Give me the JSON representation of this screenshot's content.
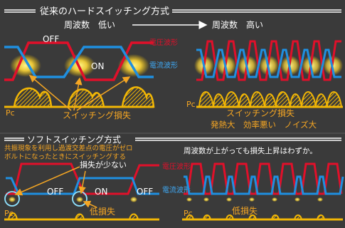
{
  "top_section": {
    "title": "従来のハードスイッチング方式",
    "freq_low": "周波数　低い",
    "freq_high": "周波数　高い",
    "off_label": "OFF",
    "on_label": "ON",
    "voltage_wave": "電圧波形",
    "current_wave": "電流波形",
    "pc_left": "Pc",
    "loss_left": "スイッチング損失",
    "pc_right": "Pc",
    "loss_right": "スイッチング損失",
    "problems": "発熱大　効率悪い　ノイズ大"
  },
  "bottom_section": {
    "title": "ソフトスイッチング方式",
    "desc_line1": "共振現象を利用し過渡交差点の電圧がゼロ",
    "desc_line2": "ボルトになったときにスイッチングする",
    "small_loss": "損失が少ない",
    "voltage_wave": "電圧波形",
    "current_wave": "電流波形",
    "off_label_1": "OFF",
    "on_label": "ON",
    "off_label_2": "OFF",
    "pc_left": "Pc",
    "low_loss_left": "低損失",
    "freq_note": "周波数が上がっても損失上昇はわずか。",
    "pc_right": "Pc",
    "low_loss_right": "低損失"
  },
  "colors": {
    "background": "#3a3a3a",
    "voltage": "#e0102a",
    "current": "#1f8fe0",
    "loss": "#f2b705",
    "text_orange": "#f5a623",
    "text_white": "#ffffff",
    "text_blue": "#3fa9f5",
    "text_red": "#e0102a",
    "highlight_circle": "#8fe3ff"
  }
}
